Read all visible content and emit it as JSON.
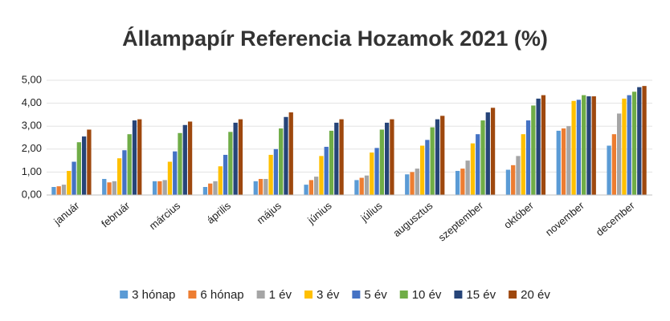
{
  "chart_data": {
    "type": "bar",
    "title": "Állampapír Referencia Hozamok 2021 (%)",
    "categories": [
      "január",
      "február",
      "március",
      "április",
      "május",
      "június",
      "július",
      "augusztus",
      "szeptember",
      "október",
      "november",
      "december"
    ],
    "series": [
      {
        "name": "3 hónap",
        "color": "#5b9bd5",
        "values": [
          0.35,
          0.7,
          0.6,
          0.35,
          0.6,
          0.45,
          0.65,
          0.9,
          1.05,
          1.1,
          2.8,
          2.15
        ]
      },
      {
        "name": "6 hónap",
        "color": "#ed7d31",
        "values": [
          0.38,
          0.55,
          0.6,
          0.5,
          0.7,
          0.65,
          0.75,
          1.0,
          1.15,
          1.3,
          2.9,
          2.65
        ]
      },
      {
        "name": "1 év",
        "color": "#a5a5a5",
        "values": [
          0.45,
          0.6,
          0.65,
          0.6,
          0.7,
          0.8,
          0.85,
          1.15,
          1.5,
          1.7,
          3.0,
          3.55
        ]
      },
      {
        "name": "3 év",
        "color": "#ffc000",
        "values": [
          1.05,
          1.6,
          1.45,
          1.25,
          1.75,
          1.7,
          1.85,
          2.15,
          2.25,
          2.65,
          4.1,
          4.2
        ]
      },
      {
        "name": "5 év",
        "color": "#4472c4",
        "values": [
          1.45,
          1.95,
          1.9,
          1.75,
          2.0,
          2.1,
          2.05,
          2.4,
          2.65,
          3.25,
          4.15,
          4.35
        ]
      },
      {
        "name": "10 év",
        "color": "#70ad47",
        "values": [
          2.3,
          2.65,
          2.7,
          2.75,
          2.9,
          2.8,
          2.85,
          2.95,
          3.25,
          3.9,
          4.35,
          4.5
        ]
      },
      {
        "name": "15 év",
        "color": "#264478",
        "values": [
          2.55,
          3.25,
          3.05,
          3.15,
          3.4,
          3.15,
          3.15,
          3.3,
          3.6,
          4.2,
          4.3,
          4.7
        ]
      },
      {
        "name": "20 év",
        "color": "#9e480e",
        "values": [
          2.85,
          3.3,
          3.2,
          3.3,
          3.6,
          3.3,
          3.3,
          3.45,
          3.8,
          4.35,
          4.3,
          4.75
        ]
      }
    ],
    "ylim": [
      0,
      5
    ],
    "yticks": [
      {
        "value": 0,
        "label": "0,00"
      },
      {
        "value": 1,
        "label": "1,00"
      },
      {
        "value": 2,
        "label": "2,00"
      },
      {
        "value": 3,
        "label": "3,00"
      },
      {
        "value": 4,
        "label": "4,00"
      },
      {
        "value": 5,
        "label": "5,00"
      }
    ],
    "grid": true,
    "legend": "bottom"
  }
}
